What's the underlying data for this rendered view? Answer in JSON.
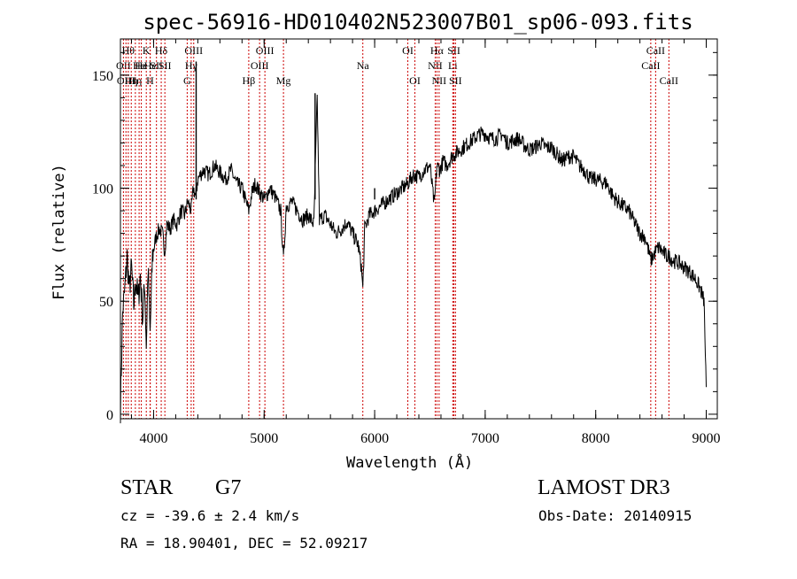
{
  "chart_data": {
    "type": "line",
    "title": "spec-56916-HD010402N523007B01_sp06-093.fits",
    "xlabel": "Wavelength (Å)",
    "ylabel": "Flux (relative)",
    "xlim": [
      3700,
      9100
    ],
    "ylim": [
      -2,
      166
    ],
    "xticks": [
      4000,
      5000,
      6000,
      7000,
      8000,
      9000
    ],
    "xtick_labels": [
      "4000",
      "5000",
      "6000",
      "7000",
      "8000",
      "9000"
    ],
    "yticks": [
      0,
      50,
      100,
      150
    ],
    "ytick_labels": [
      "0",
      "50",
      "100",
      "150"
    ],
    "grid": false,
    "line_color": "#000000",
    "marker_color": "#cc0000",
    "series": [
      {
        "x": [
          3700,
          3720,
          3740,
          3760,
          3780,
          3800,
          3820,
          3840,
          3860,
          3880,
          3900,
          3920,
          3934,
          3950,
          3968,
          3990,
          4020,
          4050,
          4080,
          4101,
          4120,
          4150,
          4180,
          4210,
          4250,
          4280,
          4310,
          4340,
          4360,
          4380,
          4400,
          4450,
          4500,
          4550,
          4600,
          4650,
          4700,
          4750,
          4800,
          4830,
          4861,
          4890,
          4920,
          4960,
          5007,
          5050,
          5100,
          5150,
          5175,
          5183,
          5200,
          5250,
          5300,
          5350,
          5400,
          5450,
          5480,
          5500,
          5550,
          5600,
          5650,
          5700,
          5750,
          5800,
          5850,
          5880,
          5893,
          5910,
          5950,
          6000,
          6050,
          6100,
          6150,
          6200,
          6250,
          6300,
          6350,
          6400,
          6450,
          6500,
          6540,
          6563,
          6590,
          6620,
          6650,
          6700,
          6750,
          6800,
          6850,
          6900,
          6950,
          7000,
          7050,
          7100,
          7150,
          7200,
          7250,
          7300,
          7350,
          7400,
          7450,
          7500,
          7550,
          7600,
          7650,
          7700,
          7750,
          7800,
          7850,
          7900,
          7950,
          8000,
          8050,
          8100,
          8150,
          8200,
          8250,
          8300,
          8350,
          8400,
          8450,
          8498,
          8520,
          8542,
          8570,
          8600,
          8640,
          8662,
          8700,
          8750,
          8800,
          8850,
          8900,
          8950,
          8980,
          9000
        ],
        "y": [
          3,
          45,
          55,
          70,
          55,
          65,
          48,
          60,
          50,
          62,
          42,
          58,
          30,
          65,
          35,
          70,
          78,
          82,
          80,
          72,
          84,
          82,
          86,
          84,
          90,
          88,
          94,
          90,
          100,
          96,
          104,
          108,
          106,
          110,
          107,
          104,
          108,
          102,
          100,
          95,
          90,
          98,
          102,
          98,
          95,
          100,
          96,
          90,
          68,
          75,
          92,
          94,
          90,
          86,
          88,
          84,
          140,
          86,
          88,
          84,
          80,
          82,
          85,
          80,
          75,
          65,
          55,
          82,
          88,
          90,
          92,
          94,
          96,
          98,
          100,
          102,
          106,
          105,
          108,
          110,
          92,
          110,
          108,
          112,
          110,
          114,
          116,
          118,
          120,
          122,
          124,
          124,
          122,
          122,
          124,
          120,
          121,
          122,
          119,
          117,
          118,
          120,
          118,
          118,
          115,
          112,
          114,
          114,
          110,
          108,
          104,
          104,
          103,
          102,
          97,
          94,
          92,
          90,
          85,
          80,
          78,
          68,
          70,
          72,
          74,
          72,
          70,
          70,
          68,
          67,
          65,
          63,
          60,
          55,
          50,
          12
        ]
      }
    ],
    "spikes": [
      {
        "x": 4385,
        "top": 156
      },
      {
        "x": 5461,
        "top": 142
      },
      {
        "x": 6000,
        "top": 100
      }
    ],
    "markers": [
      {
        "x": 3727,
        "label": "OII",
        "row": 2
      },
      {
        "x": 3750,
        "label": "OIII",
        "row": 3
      },
      {
        "x": 3771,
        "label": "Hθ",
        "row": 1
      },
      {
        "x": 3798,
        "label": "Hη",
        "row": 3
      },
      {
        "x": 3835,
        "label": "Hη",
        "row": 3
      },
      {
        "x": 3869,
        "label": "He",
        "row": 2
      },
      {
        "x": 3889,
        "label": "He",
        "row": 2
      },
      {
        "x": 3934,
        "label": "K",
        "row": 1
      },
      {
        "x": 3968,
        "label": "H",
        "row": 3
      },
      {
        "x": 3970,
        "label": "He",
        "row": 2
      },
      {
        "x": 4026,
        "label": "SII",
        "row": 2
      },
      {
        "x": 4069,
        "label": "Hδ",
        "row": 1
      },
      {
        "x": 4102,
        "label": "SII",
        "row": 2
      },
      {
        "x": 4304,
        "label": "G",
        "row": 3
      },
      {
        "x": 4340,
        "label": "Hγ",
        "row": 2
      },
      {
        "x": 4363,
        "label": "OIII",
        "row": 1
      },
      {
        "x": 4861,
        "label": "Hβ",
        "row": 3
      },
      {
        "x": 4959,
        "label": "OIII",
        "row": 2
      },
      {
        "x": 5007,
        "label": "OIII",
        "row": 1
      },
      {
        "x": 5175,
        "label": "Mg",
        "row": 3
      },
      {
        "x": 5893,
        "label": "Na",
        "row": 2
      },
      {
        "x": 6300,
        "label": "OI",
        "row": 1
      },
      {
        "x": 6364,
        "label": "OI",
        "row": 3
      },
      {
        "x": 6548,
        "label": "NII",
        "row": 2
      },
      {
        "x": 6563,
        "label": "Hα",
        "row": 1
      },
      {
        "x": 6583,
        "label": "NII",
        "row": 3
      },
      {
        "x": 6707,
        "label": "Li",
        "row": 2
      },
      {
        "x": 6717,
        "label": "SII",
        "row": 1
      },
      {
        "x": 6731,
        "label": "SII",
        "row": 3
      },
      {
        "x": 8498,
        "label": "CaII",
        "row": 2
      },
      {
        "x": 8542,
        "label": "CaII",
        "row": 1
      },
      {
        "x": 8662,
        "label": "CaII",
        "row": 3
      }
    ]
  },
  "info": {
    "object_class": "STAR",
    "subclass": "G7",
    "survey": "LAMOST DR3",
    "redshift": "cz = -39.6 ± 2.4 km/s",
    "obs_date": "Obs-Date: 20140915",
    "coords": "RA =  18.90401, DEC =  52.09217"
  }
}
